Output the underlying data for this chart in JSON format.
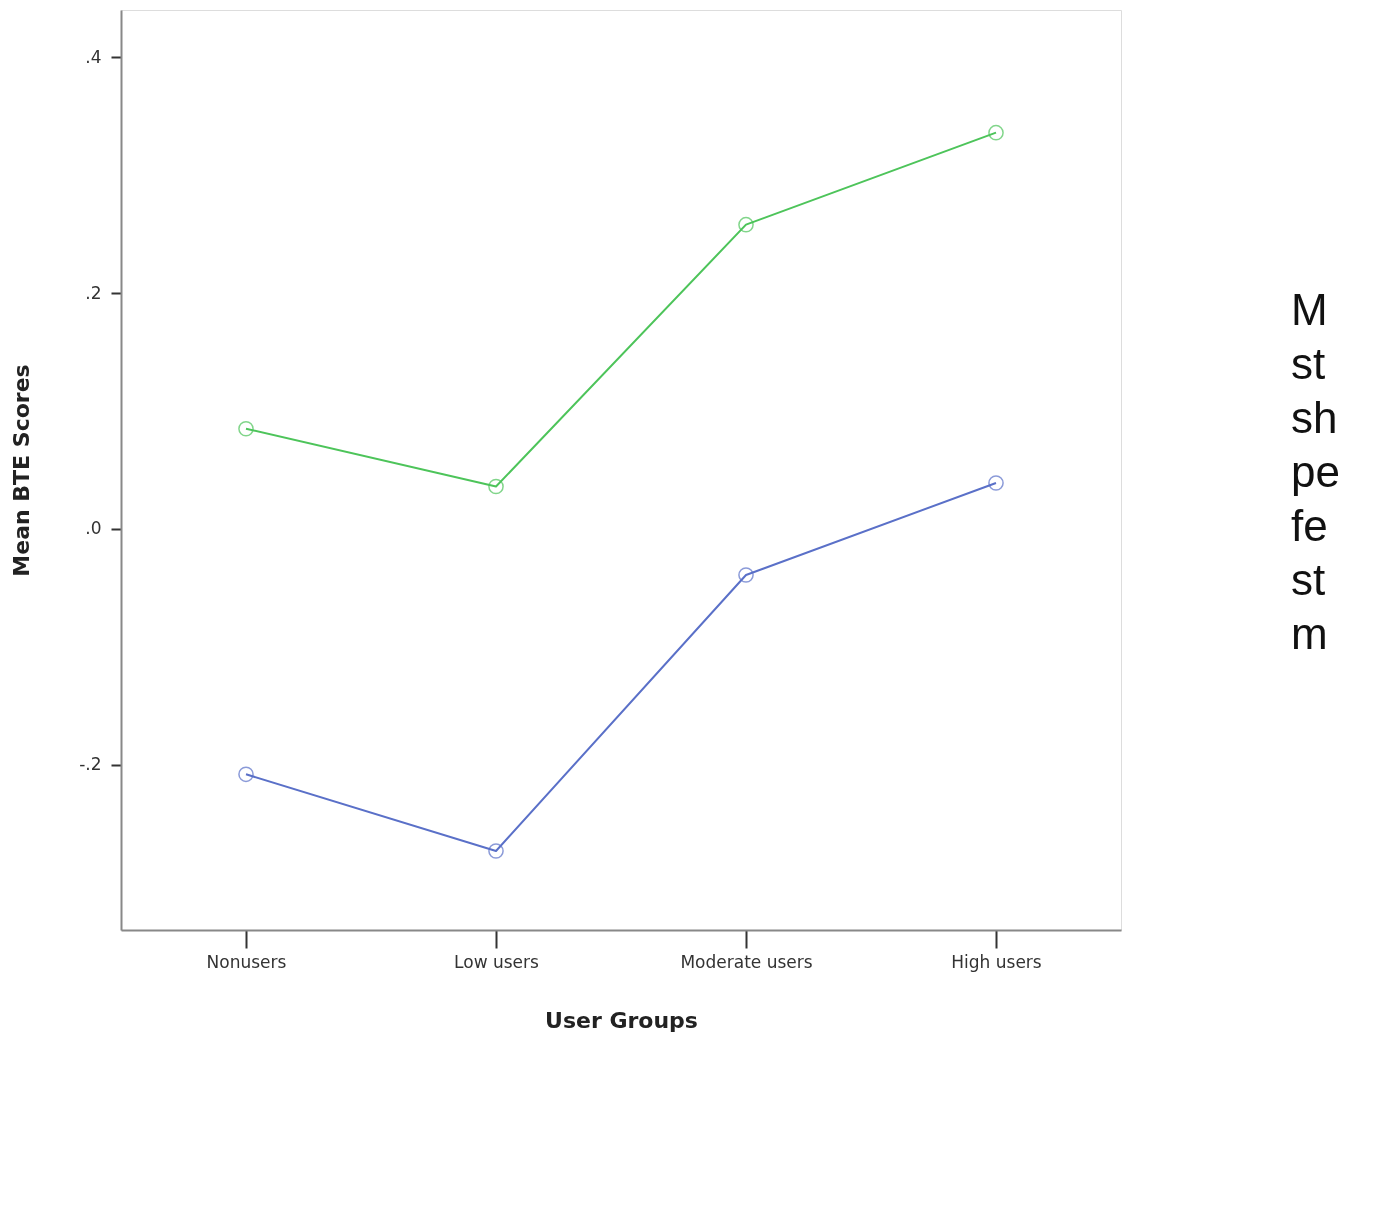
{
  "chart_data": {
    "type": "line",
    "xlabel": "User Groups",
    "ylabel": "Mean BTE Scores",
    "categories": [
      "Nonusers",
      "Low users",
      "Moderate users",
      "High users"
    ],
    "series": [
      {
        "color": "#4dc45a",
        "values": [
          0.085,
          0.036,
          0.258,
          0.336
        ]
      },
      {
        "color": "#5a70c8",
        "values": [
          -0.208,
          -0.273,
          -0.039,
          0.039
        ]
      }
    ],
    "ylim": [
      -0.34,
      0.44
    ],
    "yticks": [
      {
        "value": 0.4,
        "label": ".4"
      },
      {
        "value": 0.2,
        "label": ".2"
      },
      {
        "value": 0,
        "label": ".0"
      },
      {
        "value": -0.2,
        "label": "-.2"
      }
    ],
    "grid": false,
    "marker": "circle",
    "line_style": "solid",
    "annotations": [
      "M\nst\nsh\npe\nfe\nst\nm"
    ]
  }
}
